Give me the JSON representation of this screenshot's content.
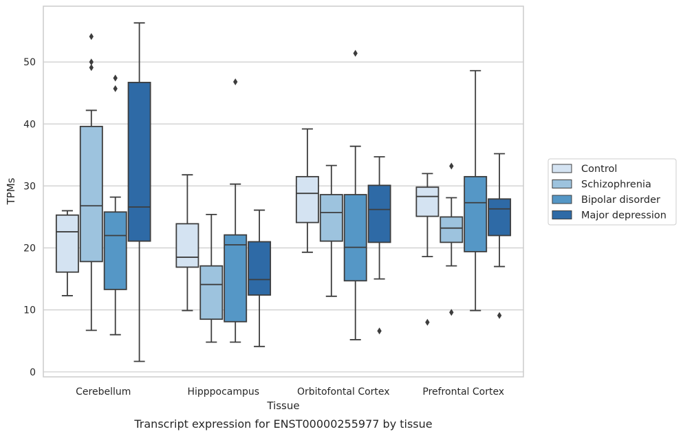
{
  "caption": "Transcript expression for ENST00000255977 by tissue",
  "chart_data": {
    "type": "box",
    "xlabel": "Tissue",
    "ylabel": "TPMs",
    "ylim": [
      -0.8,
      59
    ],
    "yticks": [
      0,
      10,
      20,
      30,
      40,
      50
    ],
    "grid": "horizontal",
    "legend_placement": "right",
    "categories": [
      "Cerebellum",
      "Hipppocampus",
      "Orbitofontal Cortex",
      "Prefrontal Cortex"
    ],
    "series": [
      {
        "name": "Control",
        "color": "#d4e3f2",
        "boxes": [
          {
            "whisker_low": 12.3,
            "q1": 16.1,
            "median": 22.6,
            "q3": 25.3,
            "whisker_high": 26.0,
            "outliers": []
          },
          {
            "whisker_low": 9.9,
            "q1": 16.9,
            "median": 18.5,
            "q3": 23.9,
            "whisker_high": 31.8,
            "outliers": []
          },
          {
            "whisker_low": 19.3,
            "q1": 24.1,
            "median": 28.8,
            "q3": 31.5,
            "whisker_high": 39.2,
            "outliers": []
          },
          {
            "whisker_low": 18.6,
            "q1": 25.1,
            "median": 28.3,
            "q3": 29.8,
            "whisker_high": 32.0,
            "outliers": [
              8.0
            ]
          }
        ]
      },
      {
        "name": "Schizophrenia",
        "color": "#9dc3de",
        "boxes": [
          {
            "whisker_low": 6.7,
            "q1": 17.8,
            "median": 26.8,
            "q3": 39.6,
            "whisker_high": 42.2,
            "outliers": [
              49.1,
              50.0,
              54.1
            ]
          },
          {
            "whisker_low": 4.8,
            "q1": 8.5,
            "median": 14.1,
            "q3": 17.1,
            "whisker_high": 25.4,
            "outliers": []
          },
          {
            "whisker_low": 12.2,
            "q1": 21.1,
            "median": 25.7,
            "q3": 28.6,
            "whisker_high": 33.3,
            "outliers": []
          },
          {
            "whisker_low": 17.1,
            "q1": 20.9,
            "median": 23.2,
            "q3": 25.0,
            "whisker_high": 28.1,
            "outliers": [
              9.6,
              33.2
            ]
          }
        ]
      },
      {
        "name": "Bipolar disorder",
        "color": "#5597c6",
        "boxes": [
          {
            "whisker_low": 6.0,
            "q1": 13.3,
            "median": 22.0,
            "q3": 25.8,
            "whisker_high": 28.2,
            "outliers": [
              45.7,
              47.4
            ]
          },
          {
            "whisker_low": 4.8,
            "q1": 8.1,
            "median": 20.5,
            "q3": 22.1,
            "whisker_high": 30.3,
            "outliers": [
              46.8
            ]
          },
          {
            "whisker_low": 5.2,
            "q1": 14.7,
            "median": 20.1,
            "q3": 28.6,
            "whisker_high": 36.4,
            "outliers": [
              51.4
            ]
          },
          {
            "whisker_low": 9.9,
            "q1": 19.4,
            "median": 27.3,
            "q3": 31.5,
            "whisker_high": 48.6,
            "outliers": []
          }
        ]
      },
      {
        "name": "Major depression",
        "color": "#2e6aa6",
        "boxes": [
          {
            "whisker_low": 1.7,
            "q1": 21.1,
            "median": 26.6,
            "q3": 46.7,
            "whisker_high": 56.3,
            "outliers": []
          },
          {
            "whisker_low": 4.1,
            "q1": 12.4,
            "median": 14.9,
            "q3": 21.0,
            "whisker_high": 26.1,
            "outliers": []
          },
          {
            "whisker_low": 15.0,
            "q1": 20.9,
            "median": 26.2,
            "q3": 30.1,
            "whisker_high": 34.7,
            "outliers": [
              6.6
            ]
          },
          {
            "whisker_low": 17.0,
            "q1": 22.0,
            "median": 26.3,
            "q3": 27.9,
            "whisker_high": 35.2,
            "outliers": [
              9.1
            ]
          }
        ]
      }
    ]
  }
}
